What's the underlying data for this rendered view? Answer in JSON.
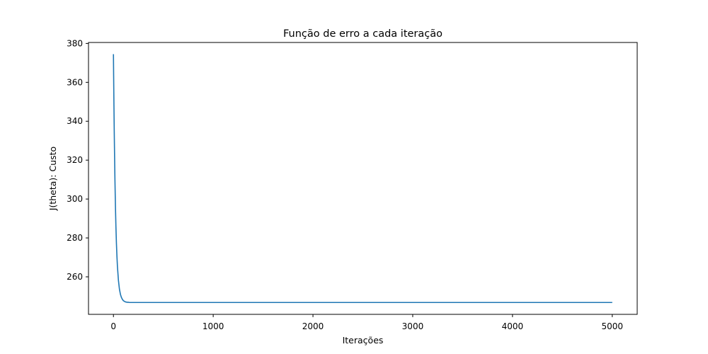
{
  "chart_data": {
    "type": "line",
    "title": "Função de erro a cada iteração",
    "xlabel": "Iterações",
    "ylabel": "J(theta): Custo",
    "xlim": [
      -250,
      5250
    ],
    "ylim": [
      240.7,
      380.5
    ],
    "xticks": [
      0,
      1000,
      2000,
      3000,
      4000,
      5000
    ],
    "yticks": [
      260,
      280,
      300,
      320,
      340,
      360,
      380
    ],
    "grid": false,
    "series": [
      {
        "color": "#1f77b4",
        "x": [
          0,
          2,
          5,
          8,
          10,
          15,
          20,
          25,
          30,
          35,
          40,
          50,
          60,
          70,
          80,
          90,
          100,
          110,
          120,
          130,
          140,
          150,
          160,
          180,
          200,
          250,
          300,
          400,
          500,
          1000,
          2000,
          3000,
          4000,
          5000
        ],
        "y": [
          374.5,
          363.4,
          348.3,
          335.2,
          327.2,
          310.0,
          296.3,
          285.6,
          277.2,
          270.6,
          265.4,
          258.2,
          253.7,
          251.0,
          249.4,
          248.4,
          247.7,
          247.4,
          247.1,
          247.0,
          246.9,
          246.9,
          246.8,
          246.8,
          246.8,
          246.8,
          246.8,
          246.8,
          246.8,
          246.8,
          246.8,
          246.8,
          246.8,
          246.8
        ]
      }
    ]
  }
}
